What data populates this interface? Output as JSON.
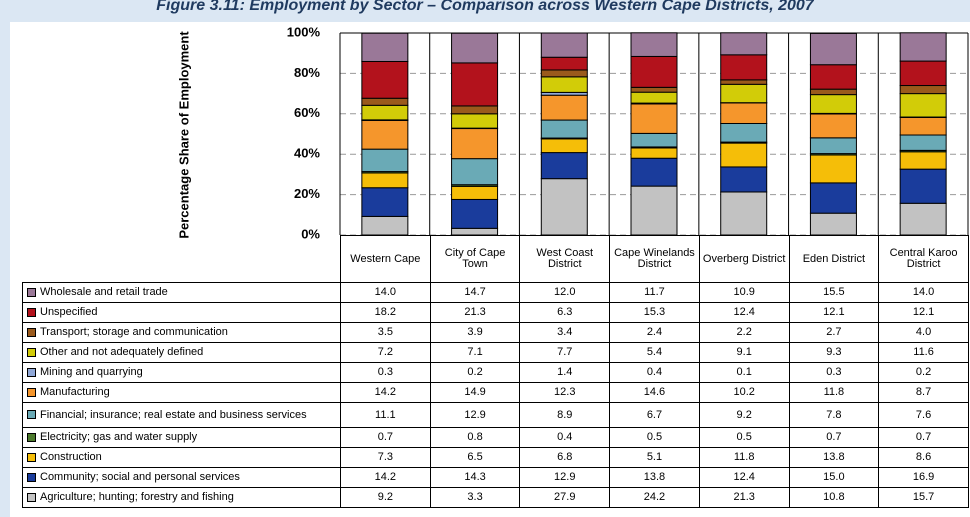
{
  "chart_data": {
    "type": "bar",
    "stacked": true,
    "title": "Figure 3.11: Employment by Sector – Comparison across Western Cape Districts, 2007",
    "ylabel": "Percentage Share of Employment",
    "categories": [
      "Western Cape",
      "City of Cape Town",
      "West Coast District",
      "Cape Winelands District",
      "Overberg District",
      "Eden District",
      "Central Karoo District"
    ],
    "ylim": [
      0,
      100
    ],
    "yticks": [
      {
        "value": 0,
        "label": "0%"
      },
      {
        "value": 20,
        "label": "20%"
      },
      {
        "value": 40,
        "label": "40%"
      },
      {
        "value": 60,
        "label": "60%"
      },
      {
        "value": 80,
        "label": "80%"
      },
      {
        "value": 100,
        "label": "100%"
      }
    ],
    "grid": true,
    "series": [
      {
        "name": "Wholesale and retail trade",
        "color": "#9a7898",
        "values": [
          14,
          14.7,
          12,
          11.7,
          10.9,
          15.5,
          14
        ],
        "value_labels": [
          "14.0",
          "14.7",
          "12.0",
          "11.7",
          "10.9",
          "15.5",
          "14.0"
        ]
      },
      {
        "name": "Unspecified",
        "color": "#b3121c",
        "values": [
          18.2,
          21.3,
          6.3,
          15.3,
          12.4,
          12.1,
          12.1
        ],
        "value_labels": [
          "18.2",
          "21.3",
          "6.3",
          "15.3",
          "12.4",
          "12.1",
          "12.1"
        ]
      },
      {
        "name": "Transport; storage and communication",
        "color": "#9a5a1c",
        "values": [
          3.5,
          3.9,
          3.4,
          2.4,
          2.2,
          2.7,
          4
        ],
        "value_labels": [
          "3.5",
          "3.9",
          "3.4",
          "2.4",
          "2.2",
          "2.7",
          "4.0"
        ]
      },
      {
        "name": "Other and not adequately defined",
        "color": "#d2cc08",
        "values": [
          7.2,
          7.1,
          7.7,
          5.4,
          9.1,
          9.3,
          11.6
        ],
        "value_labels": [
          "7.2",
          "7.1",
          "7.7",
          "5.4",
          "9.1",
          "9.3",
          "11.6"
        ]
      },
      {
        "name": "Mining and quarrying",
        "color": "#90a8d8",
        "values": [
          0.3,
          0.2,
          1.4,
          0.4,
          0.1,
          0.3,
          0.2
        ],
        "value_labels": [
          "0.3",
          "0.2",
          "1.4",
          "0.4",
          "0.1",
          "0.3",
          "0.2"
        ]
      },
      {
        "name": "Manufacturing",
        "color": "#f5962c",
        "values": [
          14.2,
          14.9,
          12.3,
          14.6,
          10.2,
          11.8,
          8.7
        ],
        "value_labels": [
          "14.2",
          "14.9",
          "12.3",
          "14.6",
          "10.2",
          "11.8",
          "8.7"
        ]
      },
      {
        "name": "Financial; insurance; real estate and business services",
        "color": "#6aaab6",
        "values": [
          11.1,
          12.9,
          8.9,
          6.7,
          9.2,
          7.8,
          7.6
        ],
        "value_labels": [
          "11.1",
          "12.9",
          "8.9",
          "6.7",
          "9.2",
          "7.8",
          "7.6"
        ]
      },
      {
        "name": "Electricity; gas and water supply",
        "color": "#4c7a2c",
        "values": [
          0.7,
          0.8,
          0.4,
          0.5,
          0.5,
          0.7,
          0.7
        ],
        "value_labels": [
          "0.7",
          "0.8",
          "0.4",
          "0.5",
          "0.5",
          "0.7",
          "0.7"
        ]
      },
      {
        "name": "Construction",
        "color": "#f5be08",
        "values": [
          7.3,
          6.5,
          6.8,
          5.1,
          11.8,
          13.8,
          8.6
        ],
        "value_labels": [
          "7.3",
          "6.5",
          "6.8",
          "5.1",
          "11.8",
          "13.8",
          "8.6"
        ]
      },
      {
        "name": "Community; social and personal services",
        "color": "#1a3c9c",
        "values": [
          14.2,
          14.3,
          12.9,
          13.8,
          12.4,
          15,
          16.9
        ],
        "value_labels": [
          "14.2",
          "14.3",
          "12.9",
          "13.8",
          "12.4",
          "15.0",
          "16.9"
        ]
      },
      {
        "name": "Agriculture; hunting; forestry and fishing",
        "color": "#c2c2c2",
        "values": [
          9.2,
          3.3,
          27.9,
          24.2,
          21.3,
          10.8,
          15.7
        ],
        "value_labels": [
          "9.2",
          "3.3",
          "27.9",
          "24.2",
          "21.3",
          "10.8",
          "15.7"
        ]
      }
    ]
  }
}
